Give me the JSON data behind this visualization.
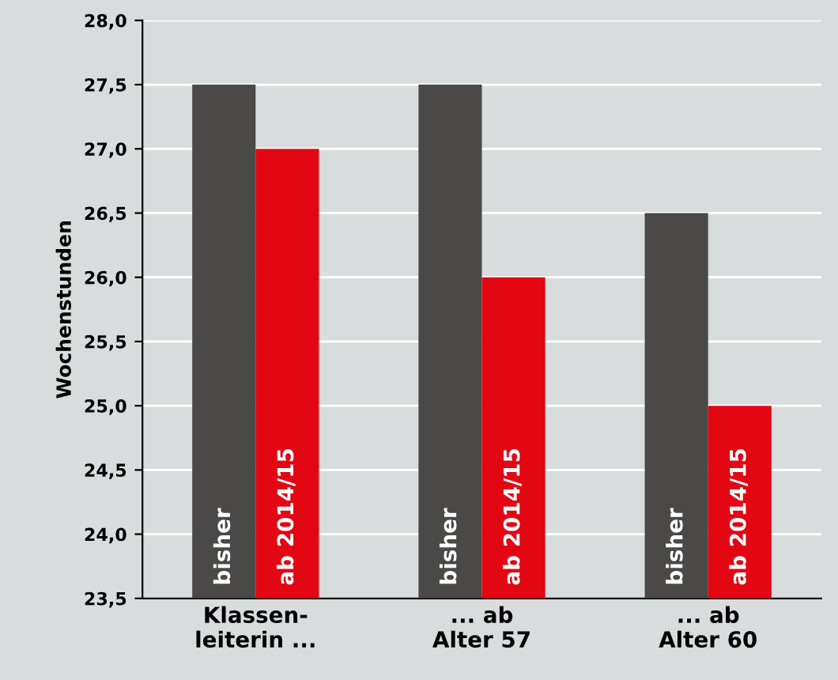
{
  "chart_data": {
    "type": "bar",
    "ylabel": "Wochenstunden",
    "categories": [
      "Klassen-\nleiterin ...",
      "... ab\nAlter 57",
      "... ab\nAlter 60"
    ],
    "series": [
      {
        "name": "bisher",
        "color": "#4a4947",
        "values": [
          27.5,
          27.5,
          26.5
        ]
      },
      {
        "name": "ab 2014/15",
        "color": "#e30613",
        "values": [
          27.0,
          26.0,
          25.0
        ]
      }
    ],
    "ylim": [
      23.5,
      28.0
    ],
    "yticks": [
      {
        "value": 23.5,
        "label": "23,5"
      },
      {
        "value": 24.0,
        "label": "24,0"
      },
      {
        "value": 24.5,
        "label": "24,5"
      },
      {
        "value": 25.0,
        "label": "25,0"
      },
      {
        "value": 25.5,
        "label": "25,5"
      },
      {
        "value": 26.0,
        "label": "26,0"
      },
      {
        "value": 26.5,
        "label": "26,5"
      },
      {
        "value": 27.0,
        "label": "27,0"
      },
      {
        "value": 27.5,
        "label": "27,5"
      },
      {
        "value": 28.0,
        "label": "28,0"
      }
    ],
    "grid": "y",
    "legend": false
  }
}
